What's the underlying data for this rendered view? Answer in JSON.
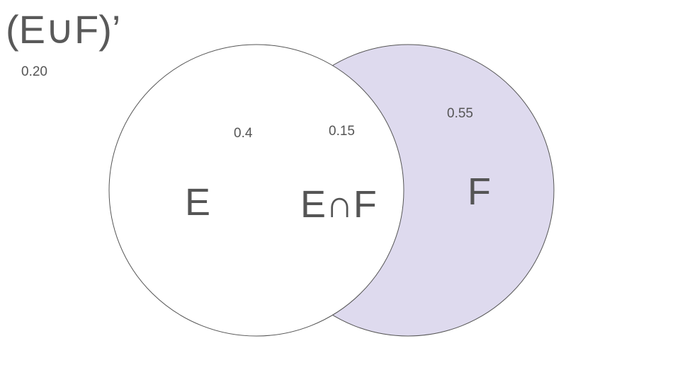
{
  "title": "(E∪F)’",
  "regions": {
    "outside_value": "0.20",
    "e_only_value": "0.4",
    "intersection_value": "0.15",
    "f_only_value": "0.55"
  },
  "labels": {
    "e": "E",
    "intersection": "E∩F",
    "f": "F"
  },
  "colors": {
    "f_fill": "#dedaee",
    "e_fill": "#ffffff",
    "stroke": "#555555",
    "text": "#555555"
  }
}
